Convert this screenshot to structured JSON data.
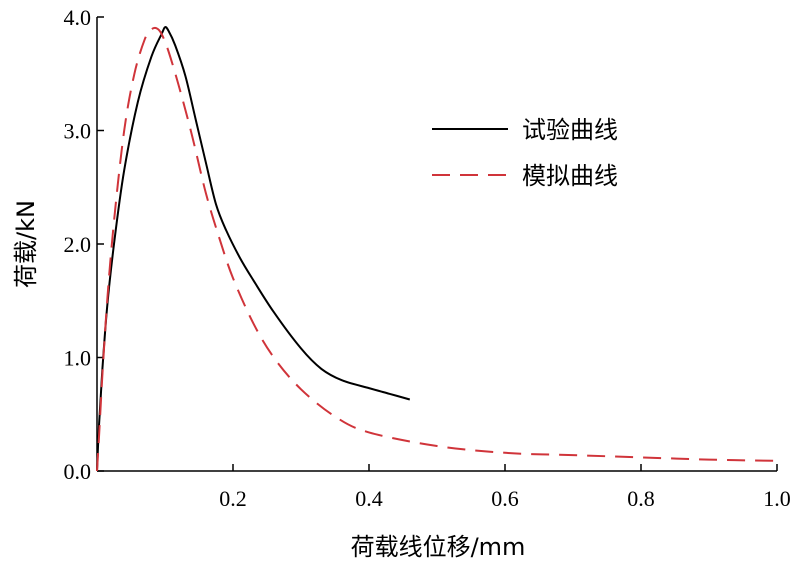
{
  "chart_data": {
    "type": "line",
    "xlabel": "荷载线位移/mm",
    "ylabel": "荷载/kN",
    "xlim": [
      0,
      1.0
    ],
    "ylim": [
      0,
      4.0
    ],
    "x_ticks": [
      "0.2",
      "0.4",
      "0.6",
      "0.8",
      "1.0"
    ],
    "x_tick_values": [
      0.2,
      0.4,
      0.6,
      0.8,
      1.0
    ],
    "y_ticks": [
      "0.0",
      "1.0",
      "2.0",
      "3.0",
      "4.0"
    ],
    "y_tick_values": [
      0.0,
      1.0,
      2.0,
      3.0,
      4.0
    ],
    "grid": false,
    "legend_position": "right",
    "series": [
      {
        "name": "试验曲线",
        "color": "#000000",
        "dash": "solid",
        "x": [
          0.0,
          0.003,
          0.008,
          0.015,
          0.025,
          0.04,
          0.06,
          0.08,
          0.095,
          0.1,
          0.105,
          0.115,
          0.13,
          0.145,
          0.16,
          0.175,
          0.19,
          0.21,
          0.23,
          0.26,
          0.3,
          0.33,
          0.36,
          0.4,
          0.43,
          0.46
        ],
        "y": [
          0.0,
          0.4,
          0.9,
          1.45,
          2.0,
          2.65,
          3.25,
          3.65,
          3.85,
          3.91,
          3.88,
          3.75,
          3.48,
          3.1,
          2.72,
          2.35,
          2.12,
          1.88,
          1.68,
          1.4,
          1.08,
          0.9,
          0.8,
          0.73,
          0.68,
          0.63
        ]
      },
      {
        "name": "模拟曲线",
        "color": "#d0343a",
        "dash": "dashed",
        "x": [
          0.0,
          0.003,
          0.008,
          0.015,
          0.025,
          0.04,
          0.055,
          0.07,
          0.08,
          0.088,
          0.095,
          0.105,
          0.12,
          0.14,
          0.16,
          0.18,
          0.2,
          0.23,
          0.26,
          0.3,
          0.35,
          0.4,
          0.5,
          0.6,
          0.7,
          0.8,
          0.9,
          1.0
        ],
        "y": [
          0.0,
          0.3,
          0.85,
          1.5,
          2.2,
          3.0,
          3.5,
          3.8,
          3.89,
          3.9,
          3.85,
          3.7,
          3.4,
          2.95,
          2.45,
          2.05,
          1.7,
          1.3,
          1.0,
          0.72,
          0.48,
          0.34,
          0.22,
          0.16,
          0.14,
          0.12,
          0.1,
          0.09
        ]
      }
    ]
  }
}
